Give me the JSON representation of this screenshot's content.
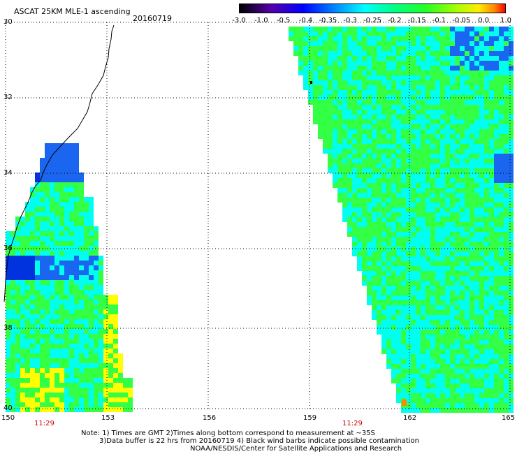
{
  "header": {
    "title": "ASCAT 25KM MLE-1 ascending",
    "date": "20160719"
  },
  "colorbar": {
    "ticks": [
      "-3.0",
      "-1.0",
      "-0.5",
      "-0.4",
      "-0.35",
      "-0.3",
      "-0.25",
      "-0.2",
      "-0.15",
      "-0.1",
      "-0.05",
      "0.0",
      "1.0"
    ]
  },
  "axes": {
    "lat_labels": [
      "30",
      "32",
      "34",
      "36",
      "38",
      "40"
    ],
    "lon_labels": [
      "150",
      "153",
      "156",
      "159",
      "162",
      "165"
    ]
  },
  "swath_times": [
    "11:29",
    "11:29"
  ],
  "notes": {
    "line1": "Note: 1) Times are GMT 2)Times along bottom correspond to measurement at ~35S",
    "line2": "3)Data buffer is 22 hrs from 20160719 4) Black wind barbs indicate possible contamination",
    "line3": "NOAA/NESDIS/Center for Satellite Applications and Research"
  },
  "colors": {
    "blue_dark": "#0033dd",
    "blue": "#1a66f0",
    "cyan": "#00ffee",
    "green": "#33ff44",
    "yellow": "#ffff00",
    "orange": "#ff8800"
  }
}
